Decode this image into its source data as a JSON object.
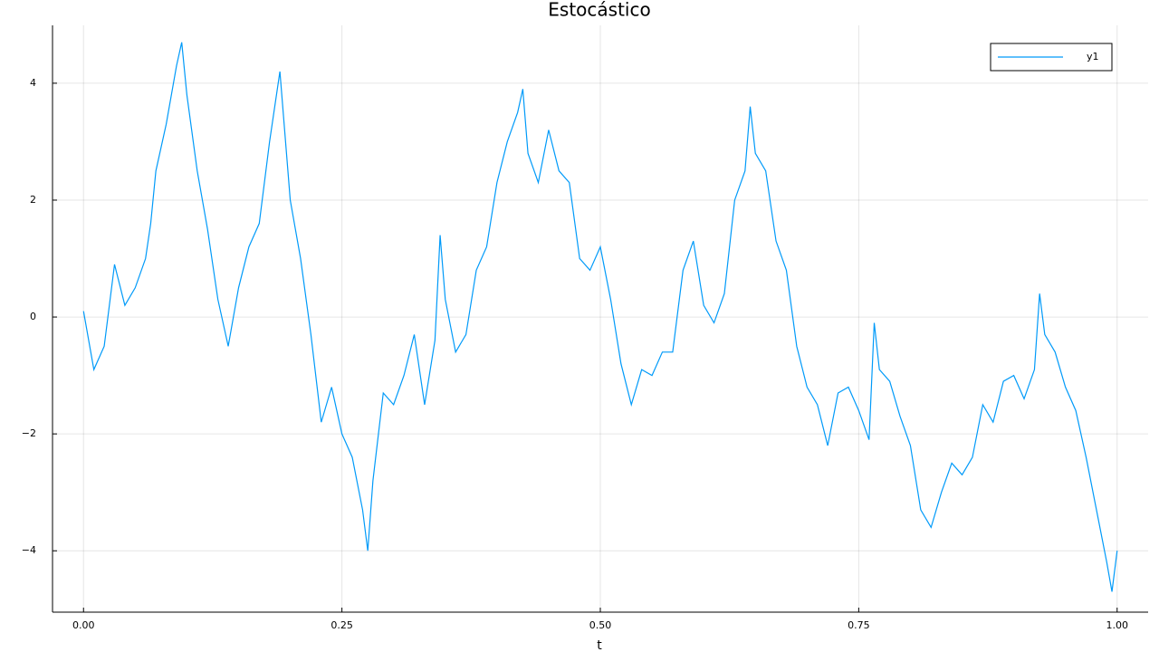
{
  "chart_data": {
    "type": "line",
    "title": "Estocástico",
    "x_label": "t",
    "x": [
      0,
      0.01,
      0.02,
      0.025,
      0.03,
      0.04,
      0.05,
      0.06,
      0.065,
      0.07,
      0.08,
      0.09,
      0.095,
      0.1,
      0.11,
      0.12,
      0.13,
      0.14,
      0.15,
      0.16,
      0.17,
      0.18,
      0.19,
      0.2,
      0.21,
      0.22,
      0.23,
      0.24,
      0.25,
      0.26,
      0.27,
      0.275,
      0.28,
      0.29,
      0.3,
      0.31,
      0.32,
      0.33,
      0.34,
      0.345,
      0.35,
      0.36,
      0.37,
      0.38,
      0.39,
      0.4,
      0.41,
      0.42,
      0.425,
      0.43,
      0.44,
      0.45,
      0.46,
      0.47,
      0.48,
      0.49,
      0.5,
      0.51,
      0.52,
      0.53,
      0.54,
      0.55,
      0.56,
      0.57,
      0.58,
      0.59,
      0.6,
      0.61,
      0.62,
      0.63,
      0.64,
      0.645,
      0.65,
      0.66,
      0.67,
      0.68,
      0.69,
      0.7,
      0.71,
      0.72,
      0.73,
      0.74,
      0.75,
      0.76,
      0.765,
      0.77,
      0.78,
      0.79,
      0.8,
      0.81,
      0.82,
      0.83,
      0.84,
      0.85,
      0.86,
      0.87,
      0.88,
      0.89,
      0.9,
      0.91,
      0.92,
      0.925,
      0.93,
      0.94,
      0.95,
      0.96,
      0.97,
      0.98,
      0.99,
      0.995,
      1.0
    ],
    "series": [
      {
        "name": "y1",
        "color": "#009af9",
        "values": [
          0.1,
          -0.9,
          -0.5,
          0.2,
          0.9,
          0.2,
          0.5,
          1.0,
          1.6,
          2.5,
          3.3,
          4.3,
          4.7,
          3.8,
          2.5,
          1.5,
          0.3,
          -0.5,
          0.5,
          1.2,
          1.6,
          3.0,
          4.2,
          2.0,
          1.0,
          -0.3,
          -1.8,
          -1.2,
          -2.0,
          -2.4,
          -3.3,
          -4.0,
          -2.8,
          -1.3,
          -1.5,
          -1.0,
          -0.3,
          -1.5,
          -0.4,
          1.4,
          0.3,
          -0.6,
          -0.3,
          0.8,
          1.2,
          2.3,
          3.0,
          3.5,
          3.9,
          2.8,
          2.3,
          3.2,
          2.5,
          2.3,
          1.0,
          0.8,
          1.2,
          0.3,
          -0.8,
          -1.5,
          -0.9,
          -1.0,
          -0.6,
          -0.6,
          0.8,
          1.3,
          0.2,
          -0.1,
          0.4,
          2.0,
          2.5,
          3.6,
          2.8,
          2.5,
          1.3,
          0.8,
          -0.5,
          -1.2,
          -1.5,
          -2.2,
          -1.3,
          -1.2,
          -1.6,
          -2.1,
          -0.1,
          -0.9,
          -1.1,
          -1.7,
          -2.2,
          -3.3,
          -3.6,
          -3.0,
          -2.5,
          -2.7,
          -2.4,
          -1.5,
          -1.8,
          -1.1,
          -1.0,
          -1.4,
          -0.9,
          0.4,
          -0.3,
          -0.6,
          -1.2,
          -1.6,
          -2.4,
          -3.3,
          -4.2,
          -4.7,
          -4.0
        ]
      }
    ],
    "xlim": [
      -0.03,
      1.03
    ],
    "ylim": [
      -5.05,
      4.99
    ],
    "xticks": [
      {
        "value": 0,
        "label": "0.00"
      },
      {
        "value": 0.25,
        "label": "0.25"
      },
      {
        "value": 0.5,
        "label": "0.50"
      },
      {
        "value": 0.75,
        "label": "0.75"
      },
      {
        "value": 1,
        "label": "1.00"
      }
    ],
    "yticks": [
      {
        "value": -4,
        "label": "−4"
      },
      {
        "value": -2,
        "label": "−2"
      },
      0,
      2,
      4
    ],
    "grid": true,
    "legend": "top-right"
  }
}
